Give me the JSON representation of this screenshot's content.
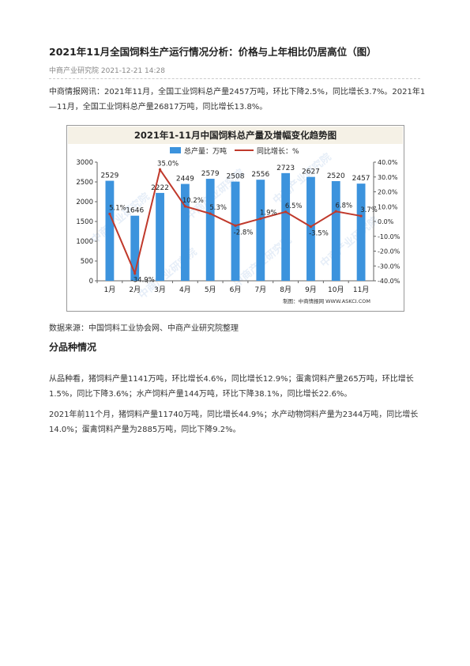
{
  "article": {
    "title": "2021年11月全国饲料生产运行情况分析：价格与上年相比仍居高位（图）",
    "meta": "中商产业研究院 2021-12-21 14:28",
    "intro": "中商情报网讯：2021年11月，全国工业饲料总产量2457万吨，环比下降2.5%，同比增长3.7%。2021年1—11月，全国工业饲料总产量26817万吨，同比增长13.8%。",
    "source": "数据来源：中国饲料工业协会网、中商产业研究院整理",
    "section_title": "分品种情况",
    "para3": "从品种看，猪饲料产量1141万吨，环比增长4.6%，同比增长12.9%；蛋禽饲料产量265万吨，环比增长1.5%，同比下降3.6%；水产饲料产量144万吨，环比下降38.1%，同比增长22.6%。",
    "para4": "2021年前11个月，猪饲料产量11740万吨，同比增长44.9%；水产动物饲料产量为2344万吨，同比增长14.0%；蛋禽饲料产量为2885万吨，同比下降9.2%。"
  },
  "chart_data": {
    "type": "bar",
    "title": "2021年1-11月中国饲料总产量及增幅变化趋势图",
    "categories": [
      "1月",
      "2月",
      "3月",
      "4月",
      "5月",
      "6月",
      "7月",
      "8月",
      "9月",
      "10月",
      "11月"
    ],
    "series": [
      {
        "name": "总产量：万吨",
        "type": "bar",
        "axis": "left",
        "values": [
          2529,
          1646,
          2222,
          2449,
          2579,
          2508,
          2556,
          2723,
          2627,
          2520,
          2457
        ],
        "labels": [
          "2529",
          "1646",
          "2222",
          "2449",
          "2579",
          "2508",
          "2556",
          "2723",
          "2627",
          "2520",
          "2457"
        ]
      },
      {
        "name": "同比增长：%",
        "type": "line",
        "axis": "right",
        "values": [
          5.1,
          -34.9,
          35.0,
          10.2,
          5.3,
          -2.8,
          1.9,
          6.5,
          -3.5,
          6.8,
          3.7
        ],
        "labels": [
          "5.1%",
          "-34.9%",
          "35.0%",
          "10.2%",
          "5.3%",
          "-2.8%",
          "1.9%",
          "6.5%",
          "-3.5%",
          "6.8%",
          "3.7%"
        ]
      }
    ],
    "y_left": {
      "min": 0,
      "max": 3000,
      "ticks": [
        "0",
        "500",
        "1000",
        "1500",
        "2000",
        "2500",
        "3000"
      ]
    },
    "y_right": {
      "min": -40,
      "max": 40,
      "ticks": [
        "-40.0%",
        "-30.0%",
        "-20.0%",
        "-10.0%",
        "0.0%",
        "10.0%",
        "20.0%",
        "30.0%",
        "40.0%"
      ]
    },
    "legend_position": "top",
    "credit": "制图：中商情报网 WWW.ASKCI.COM",
    "watermark": "中商产业研究院",
    "colors": {
      "bar": "#3c93dd",
      "line": "#c0392b",
      "title_bg": "#f5f1e6"
    }
  }
}
